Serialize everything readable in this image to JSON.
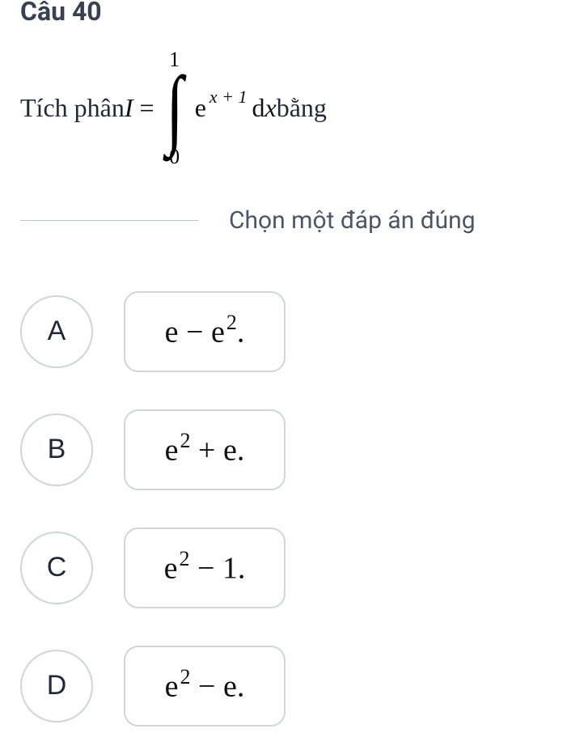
{
  "question": {
    "title": "Câu 40",
    "prefix_text": "Tích phân ",
    "var": "I",
    "equals": " = ",
    "integral": {
      "upper": "1",
      "lower": "0"
    },
    "integrand_base": "e",
    "integrand_exp_var": "x",
    "integrand_exp_rest": " + 1",
    "dx_d": "d",
    "dx_x": "x",
    "suffix_text": "bằng"
  },
  "prompt": "Chọn một đáp án đúng",
  "options": [
    {
      "letter": "A",
      "html": "<span class=\"e\">e</span> − <span class=\"e\">e</span><span class=\"sup2\">2</span>."
    },
    {
      "letter": "B",
      "html": "<span class=\"e\">e</span><span class=\"sup2\">2</span> + <span class=\"e\">e</span>."
    },
    {
      "letter": "C",
      "html": "<span class=\"e\">e</span><span class=\"sup2\">2</span> − 1."
    },
    {
      "letter": "D",
      "html": "<span class=\"e\">e</span><span class=\"sup2\">2</span> − <span class=\"e\">e</span>."
    }
  ],
  "colors": {
    "text_heading": "#374151",
    "text_body": "#1f2937",
    "text_prompt": "#4b5563",
    "border": "#d1d5db",
    "hr": "#bfc4cc",
    "background": "#ffffff"
  }
}
